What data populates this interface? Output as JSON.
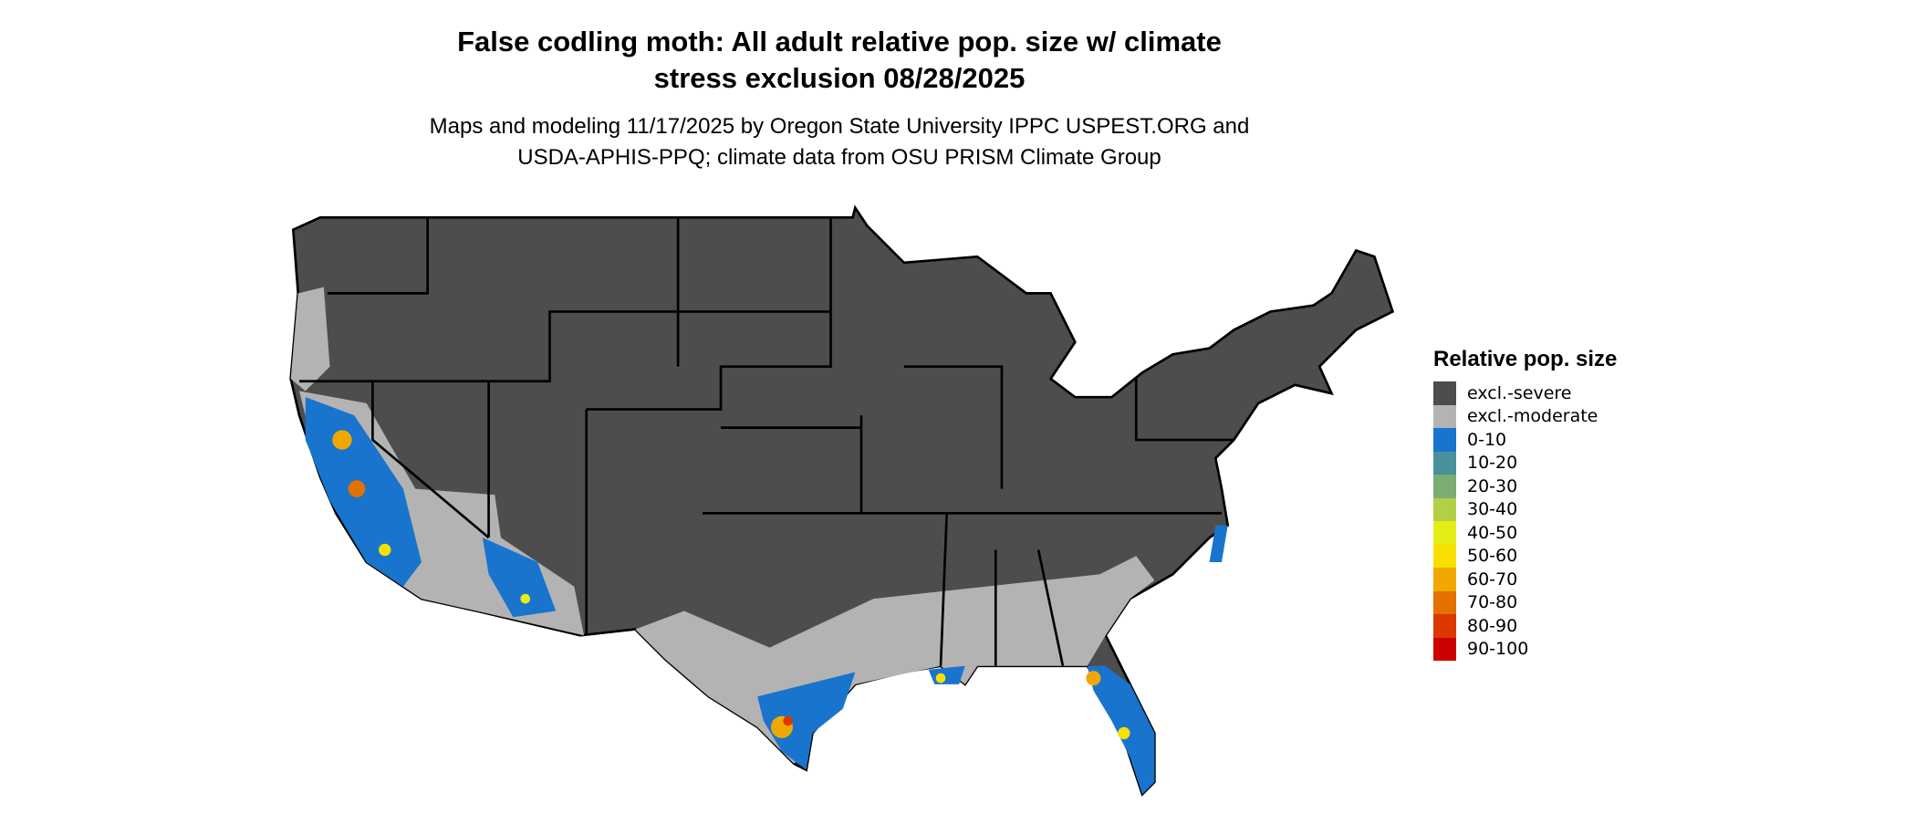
{
  "title": {
    "line1": "False codling moth: All adult relative pop. size w/ climate",
    "line2": "stress exclusion 08/28/2025"
  },
  "subtitle": {
    "line1": "Maps and modeling 11/17/2025 by Oregon State University IPPC USPEST.ORG and",
    "line2": "USDA-APHIS-PPQ; climate data from OSU PRISM Climate Group"
  },
  "legend": {
    "title": "Relative pop. size",
    "items": [
      {
        "label": "excl.-severe",
        "color": "#4d4d4d"
      },
      {
        "label": "excl.-moderate",
        "color": "#b3b3b3"
      },
      {
        "label": "0-10",
        "color": "#1874cd"
      },
      {
        "label": "10-20",
        "color": "#48919b"
      },
      {
        "label": "20-30",
        "color": "#7bad72"
      },
      {
        "label": "30-40",
        "color": "#b2d046"
      },
      {
        "label": "40-50",
        "color": "#e4ee16"
      },
      {
        "label": "50-60",
        "color": "#f8e000"
      },
      {
        "label": "60-70",
        "color": "#f0a800"
      },
      {
        "label": "70-80",
        "color": "#e47000"
      },
      {
        "label": "80-90",
        "color": "#da3800"
      },
      {
        "label": "90-100",
        "color": "#cd0000"
      }
    ]
  }
}
